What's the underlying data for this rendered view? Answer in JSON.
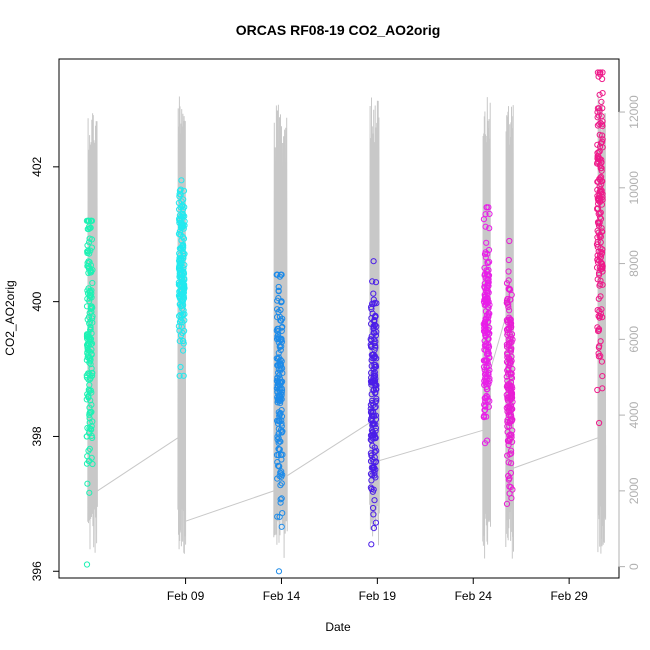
{
  "chart_data": {
    "type": "scatter",
    "title": "ORCAS RF08-19 CO2_AO2orig",
    "xlabel": "Date",
    "ylabel": "CO2_AO2orig",
    "x_ticks": [
      "Feb 09",
      "Feb 14",
      "Feb 19",
      "Feb 24",
      "Feb 29"
    ],
    "x_tick_days": [
      9,
      14,
      19,
      24,
      29
    ],
    "xlim_days": [
      2.4,
      31.6
    ],
    "ylim": [
      395.9,
      403.6
    ],
    "y_ticks": [
      396,
      398,
      400,
      402
    ],
    "y2_ticks": [
      0,
      2000,
      4000,
      6000,
      8000,
      10000,
      12000
    ],
    "y2lim": [
      -300,
      13400
    ],
    "grid": false,
    "legend": "none",
    "series": [
      {
        "day": 4.0,
        "y_min": 396.1,
        "y_max": 401.2,
        "center": 399.4,
        "color": "#1ef2b4"
      },
      {
        "day": 8.8,
        "y_min": 398.9,
        "y_max": 401.8,
        "center": 400.5,
        "color": "#22e9ef"
      },
      {
        "day": 13.9,
        "y_min": 396.0,
        "y_max": 400.4,
        "center": 398.6,
        "color": "#1e8be8"
      },
      {
        "day": 18.8,
        "y_min": 396.4,
        "y_max": 400.6,
        "center": 398.6,
        "color": "#4b1ee8"
      },
      {
        "day": 24.7,
        "y_min": 397.9,
        "y_max": 401.4,
        "center": 399.7,
        "color": "#e81ee8"
      },
      {
        "day": 25.9,
        "y_min": 397.0,
        "y_max": 400.9,
        "center": 398.8,
        "color": "#e81ed4"
      },
      {
        "day": 30.6,
        "y_min": 398.2,
        "y_max": 403.4,
        "center": 401.4,
        "color": "#ee1a8a"
      }
    ],
    "altitude_trace": {
      "color": "#c8c8c8",
      "flights": [
        {
          "start": 3.9,
          "end": 4.4,
          "max_alt": 12200,
          "end_alt": 2000
        },
        {
          "start": 8.6,
          "end": 9.0,
          "max_alt": 12600,
          "end_alt": 1200
        },
        {
          "start": 13.6,
          "end": 14.3,
          "max_alt": 12200,
          "end_alt": 2400
        },
        {
          "start": 18.6,
          "end": 19.1,
          "max_alt": 12400,
          "end_alt": 2800
        },
        {
          "start": 24.5,
          "end": 24.9,
          "max_alt": 12400,
          "end_alt": 5200
        },
        {
          "start": 25.7,
          "end": 26.1,
          "max_alt": 12300,
          "end_alt": 2600
        },
        {
          "start": 30.5,
          "end": 30.9,
          "max_alt": 12600,
          "end_alt": 3200
        }
      ]
    }
  }
}
